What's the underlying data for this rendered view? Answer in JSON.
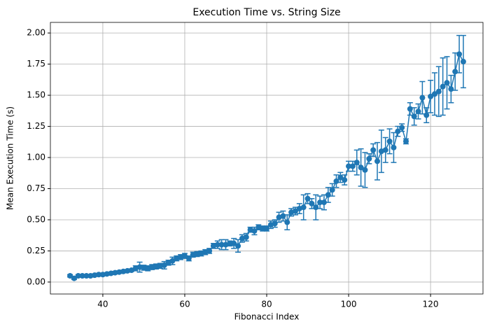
{
  "chart_data": {
    "type": "line",
    "title": "Execution Time vs. String Size",
    "xlabel": "Fibonacci Index",
    "ylabel": "Mean Execution Time (s)",
    "x": [
      32,
      33,
      34,
      35,
      36,
      37,
      38,
      39,
      40,
      41,
      42,
      43,
      44,
      45,
      46,
      47,
      48,
      49,
      50,
      51,
      52,
      53,
      54,
      55,
      56,
      57,
      58,
      59,
      60,
      61,
      62,
      63,
      64,
      65,
      66,
      67,
      68,
      69,
      70,
      71,
      72,
      73,
      74,
      75,
      76,
      77,
      78,
      79,
      80,
      81,
      82,
      83,
      84,
      85,
      86,
      87,
      88,
      89,
      90,
      91,
      92,
      93,
      94,
      95,
      96,
      97,
      98,
      99,
      100,
      101,
      102,
      103,
      104,
      105,
      106,
      107,
      108,
      109,
      110,
      111,
      112,
      113,
      114,
      115,
      116,
      117,
      118,
      119,
      120,
      121,
      122,
      123,
      124,
      125,
      126,
      127,
      128
    ],
    "series": [
      {
        "color": "#1f77b4",
        "values": [
          0.05,
          0.03,
          0.05,
          0.05,
          0.05,
          0.05,
          0.055,
          0.06,
          0.06,
          0.065,
          0.07,
          0.075,
          0.08,
          0.085,
          0.09,
          0.095,
          0.11,
          0.12,
          0.115,
          0.11,
          0.12,
          0.125,
          0.13,
          0.135,
          0.155,
          0.17,
          0.19,
          0.2,
          0.21,
          0.19,
          0.22,
          0.225,
          0.23,
          0.24,
          0.25,
          0.29,
          0.3,
          0.3,
          0.3,
          0.31,
          0.31,
          0.29,
          0.35,
          0.36,
          0.42,
          0.41,
          0.44,
          0.43,
          0.43,
          0.46,
          0.47,
          0.52,
          0.53,
          0.48,
          0.56,
          0.57,
          0.59,
          0.6,
          0.67,
          0.63,
          0.6,
          0.64,
          0.64,
          0.7,
          0.74,
          0.81,
          0.84,
          0.82,
          0.93,
          0.93,
          0.96,
          0.92,
          0.9,
          0.99,
          1.06,
          0.97,
          1.05,
          1.06,
          1.13,
          1.08,
          1.21,
          1.24,
          1.13,
          1.39,
          1.33,
          1.37,
          1.48,
          1.34,
          1.49,
          1.51,
          1.53,
          1.57,
          1.6,
          1.55,
          1.69,
          1.83,
          1.77
        ],
        "errors": [
          0.01,
          0.01,
          0.01,
          0.01,
          0.01,
          0.01,
          0.01,
          0.01,
          0.01,
          0.01,
          0.01,
          0.01,
          0.01,
          0.01,
          0.01,
          0.01,
          0.02,
          0.04,
          0.02,
          0.02,
          0.02,
          0.02,
          0.02,
          0.03,
          0.02,
          0.03,
          0.02,
          0.02,
          0.02,
          0.02,
          0.02,
          0.02,
          0.02,
          0.02,
          0.02,
          0.02,
          0.03,
          0.04,
          0.04,
          0.02,
          0.04,
          0.05,
          0.03,
          0.03,
          0.02,
          0.03,
          0.02,
          0.02,
          0.02,
          0.03,
          0.03,
          0.04,
          0.04,
          0.06,
          0.03,
          0.03,
          0.04,
          0.1,
          0.04,
          0.04,
          0.1,
          0.05,
          0.06,
          0.06,
          0.05,
          0.05,
          0.04,
          0.04,
          0.04,
          0.04,
          0.1,
          0.15,
          0.14,
          0.04,
          0.05,
          0.15,
          0.17,
          0.1,
          0.1,
          0.12,
          0.04,
          0.03,
          0.02,
          0.05,
          0.07,
          0.06,
          0.13,
          0.06,
          0.13,
          0.17,
          0.2,
          0.23,
          0.21,
          0.11,
          0.15,
          0.15,
          0.21
        ]
      }
    ],
    "xlim": [
      27.2,
      132.8
    ],
    "xticks": [
      40,
      60,
      80,
      100,
      120
    ],
    "ylim": [
      -0.096,
      2.085
    ],
    "yticks": [
      {
        "value": 0,
        "label": "0.00"
      },
      {
        "value": 0.25,
        "label": "0.25"
      },
      {
        "value": 0.5,
        "label": "0.50"
      },
      {
        "value": 0.75,
        "label": "0.75"
      },
      {
        "value": 1,
        "label": "1.00"
      },
      {
        "value": 1.25,
        "label": "1.25"
      },
      {
        "value": 1.5,
        "label": "1.50"
      },
      {
        "value": 1.75,
        "label": "1.75"
      },
      {
        "value": 2,
        "label": "2.00"
      }
    ],
    "grid": true
  }
}
